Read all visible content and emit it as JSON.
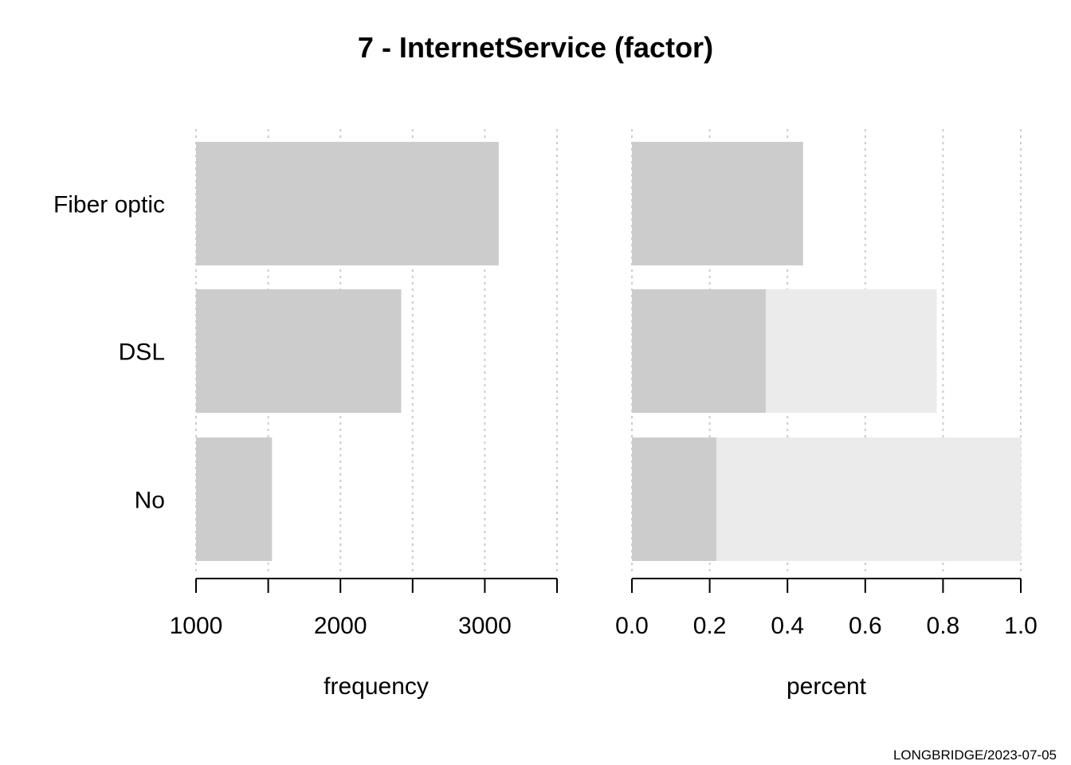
{
  "chart_data": {
    "title": "7 - InternetService (factor)",
    "categories": [
      "Fiber optic",
      "DSL",
      "No"
    ],
    "footer": "LONGBRIDGE/2023-07-05",
    "colors": {
      "bar": "#cccccc",
      "cumulative": "#ebebeb",
      "grid": "#cccccc",
      "axis": "#000000"
    },
    "panels": [
      {
        "type": "bar",
        "orientation": "horizontal",
        "xlabel": "frequency",
        "xlim": [
          1000,
          3500
        ],
        "ticks": [
          1000,
          1500,
          2000,
          2500,
          3000,
          3500
        ],
        "tick_labels": [
          "1000",
          "",
          "2000",
          "",
          "3000",
          ""
        ],
        "grid": true,
        "series": [
          {
            "values": [
              3096,
              2421,
              1526
            ]
          }
        ]
      },
      {
        "type": "bar",
        "orientation": "horizontal",
        "stacked_cumulative": true,
        "xlabel": "percent",
        "xlim": [
          0,
          1
        ],
        "ticks": [
          0,
          0.2,
          0.4,
          0.6,
          0.8,
          1.0
        ],
        "tick_labels": [
          "0.0",
          "0.2",
          "0.4",
          "0.6",
          "0.8",
          "1.0"
        ],
        "grid": true,
        "series": [
          {
            "values": [
              0.44,
              0.344,
              0.217
            ]
          },
          {
            "values": [
              0,
              0.44,
              0.784
            ]
          }
        ]
      }
    ]
  }
}
